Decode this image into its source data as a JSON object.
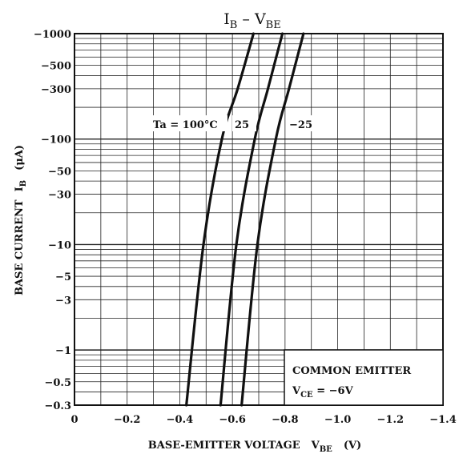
{
  "chart_data": {
    "type": "line",
    "title_main": "I",
    "title_sub1": "B",
    "title_dash": " – ",
    "title_main2": "V",
    "title_sub2": "BE",
    "xlabel_text": "BASE-EMITTER VOLTAGE",
    "xlabel_sym": "V",
    "xlabel_sub": "BE",
    "xlabel_unit": "(V)",
    "ylabel_text": "BASE CURRENT",
    "ylabel_sym": "I",
    "ylabel_sub": "B",
    "ylabel_unit": "(μA)",
    "x_scale": "linear",
    "y_scale": "log",
    "xlim": [
      0,
      -1.4
    ],
    "ylim": [
      -0.3,
      -1000
    ],
    "x_ticks": [
      {
        "value": 0,
        "label": "0"
      },
      {
        "value": -0.2,
        "label": "−0.2"
      },
      {
        "value": -0.4,
        "label": "−0.4"
      },
      {
        "value": -0.6,
        "label": "−0.6"
      },
      {
        "value": -0.8,
        "label": "−0.8"
      },
      {
        "value": -1.0,
        "label": "−1.0"
      },
      {
        "value": -1.2,
        "label": "−1.2"
      },
      {
        "value": -1.4,
        "label": "−1.4"
      }
    ],
    "y_ticks": [
      {
        "value": -0.3,
        "label": "−0.3"
      },
      {
        "value": -0.5,
        "label": "−0.5"
      },
      {
        "value": -1,
        "label": "−1"
      },
      {
        "value": -3,
        "label": "−3"
      },
      {
        "value": -5,
        "label": "−5"
      },
      {
        "value": -10,
        "label": "−10"
      },
      {
        "value": -30,
        "label": "−30"
      },
      {
        "value": -50,
        "label": "−50"
      },
      {
        "value": -100,
        "label": "−100"
      },
      {
        "value": -300,
        "label": "−300"
      },
      {
        "value": -500,
        "label": "−500"
      },
      {
        "value": -1000,
        "label": "−1000"
      }
    ],
    "grid": true,
    "series": [
      {
        "name": "Ta = 100°C",
        "x": [
          -0.425,
          -0.49,
          -0.56,
          -0.62,
          -0.68
        ],
        "y": [
          -0.3,
          -10,
          -100,
          -300,
          -1000
        ]
      },
      {
        "name": "25",
        "x": [
          -0.555,
          -0.615,
          -0.685,
          -0.735,
          -0.79
        ],
        "y": [
          -0.3,
          -10,
          -100,
          -300,
          -1000
        ]
      },
      {
        "name": "−25",
        "x": [
          -0.635,
          -0.695,
          -0.765,
          -0.815,
          -0.87
        ],
        "y": [
          -0.3,
          -10,
          -100,
          -300,
          -1000
        ]
      }
    ],
    "annotation_line1": "COMMON EMITTER",
    "annotation_v": "V",
    "annotation_sub": "CE",
    "annotation_value": " = −6V"
  }
}
